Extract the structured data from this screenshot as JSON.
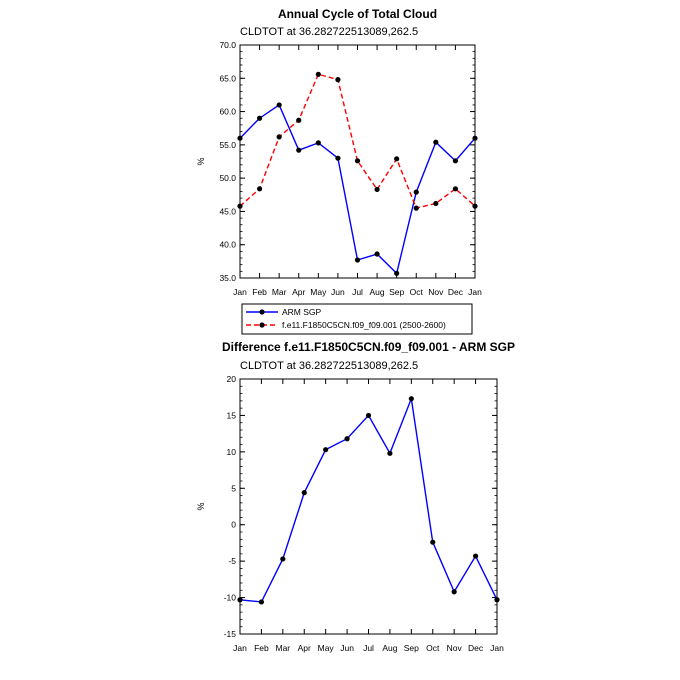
{
  "chart_data": [
    {
      "type": "line",
      "title": "Annual Cycle of Total Cloud",
      "subtitle": "CLDTOT at 36.282722513089,262.5",
      "xlabel": "",
      "ylabel": "%",
      "categories": [
        "Jan",
        "Feb",
        "Mar",
        "Apr",
        "May",
        "Jun",
        "Jul",
        "Aug",
        "Sep",
        "Oct",
        "Nov",
        "Dec",
        "Jan"
      ],
      "ylim": [
        35.0,
        70.0
      ],
      "yticks": [
        "35.0",
        "40.0",
        "45.0",
        "50.0",
        "55.0",
        "60.0",
        "65.0",
        "70.0"
      ],
      "ytick_values": [
        35,
        40,
        45,
        50,
        55,
        60,
        65,
        70
      ],
      "series": [
        {
          "name": "ARM SGP",
          "color": "#0000ff",
          "dash": "solid",
          "values": [
            56.0,
            59.0,
            61.0,
            54.2,
            55.3,
            53.0,
            37.7,
            38.6,
            35.7,
            47.9,
            55.4,
            52.6,
            56.0
          ]
        },
        {
          "name": "f.e11.F1850C5CN.f09_f09.001 (2500-2600)",
          "color": "#ff0000",
          "dash": "dashed",
          "values": [
            45.8,
            48.4,
            56.2,
            58.7,
            65.6,
            64.8,
            52.6,
            48.3,
            52.9,
            45.5,
            46.2,
            48.4,
            45.8
          ]
        }
      ]
    },
    {
      "type": "line",
      "title": "Difference f.e11.F1850C5CN.f09_f09.001 - ARM SGP",
      "subtitle": "CLDTOT at 36.282722513089,262.5",
      "xlabel": "",
      "ylabel": "%",
      "categories": [
        "Jan",
        "Feb",
        "Mar",
        "Apr",
        "May",
        "Jun",
        "Jul",
        "Aug",
        "Sep",
        "Oct",
        "Nov",
        "Dec",
        "Jan"
      ],
      "ylim": [
        -15,
        20
      ],
      "yticks": [
        "-15",
        "-10",
        "-5",
        "0",
        "5",
        "10",
        "15",
        "20"
      ],
      "ytick_values": [
        -15,
        -10,
        -5,
        0,
        5,
        10,
        15,
        20
      ],
      "series": [
        {
          "name": "Difference",
          "color": "#0000ff",
          "dash": "solid",
          "values": [
            -10.3,
            -10.6,
            -4.7,
            4.4,
            10.3,
            11.8,
            15.0,
            9.8,
            17.3,
            -2.4,
            -9.2,
            -4.3,
            -10.3
          ]
        }
      ]
    }
  ]
}
